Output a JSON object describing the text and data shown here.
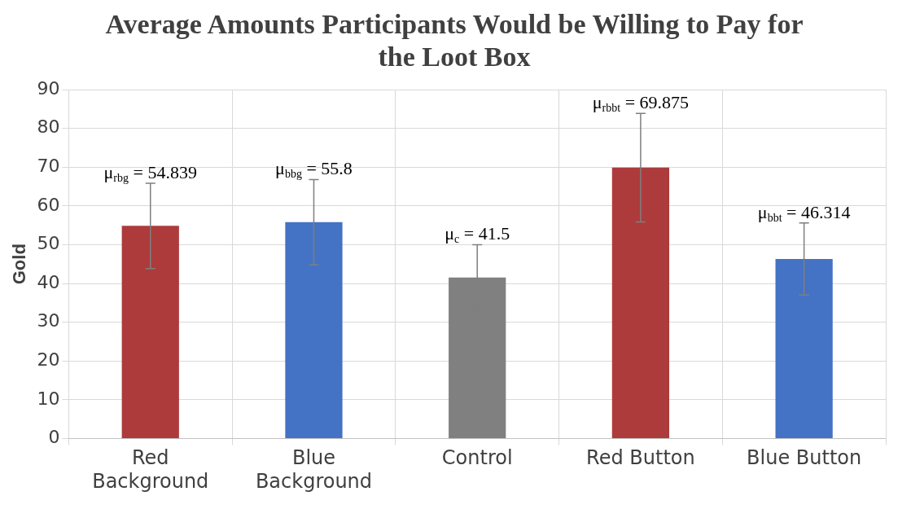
{
  "chart_data": {
    "type": "bar",
    "title": "Average Amounts Participants Would be Willing to Pay for the Loot Box",
    "ylabel": "Gold",
    "categories": [
      "Red Background",
      "Blue Background",
      "Control",
      "Red Button",
      "Blue Button"
    ],
    "values": [
      54.839,
      55.8,
      41.5,
      69.875,
      46.314
    ],
    "colors": [
      "#ad3b3b",
      "#4472c4",
      "#808080",
      "#ad3b3b",
      "#4472c4"
    ],
    "errors": [
      11,
      11,
      8.5,
      14,
      9.3
    ],
    "value_labels": [
      "μ$_{rbg}$ = 54.839",
      "μ$_{bbg}$ = 55.8",
      "μ$_{c}$ = 41.5",
      "μ$_{rbbt}$ = 69.875",
      "μ$_{bbt}$ = 46.314"
    ],
    "ylim": [
      0,
      90
    ],
    "yticks": [
      0,
      10,
      20,
      30,
      40,
      50,
      60,
      70,
      80,
      90
    ],
    "grid": true,
    "legend": false
  }
}
